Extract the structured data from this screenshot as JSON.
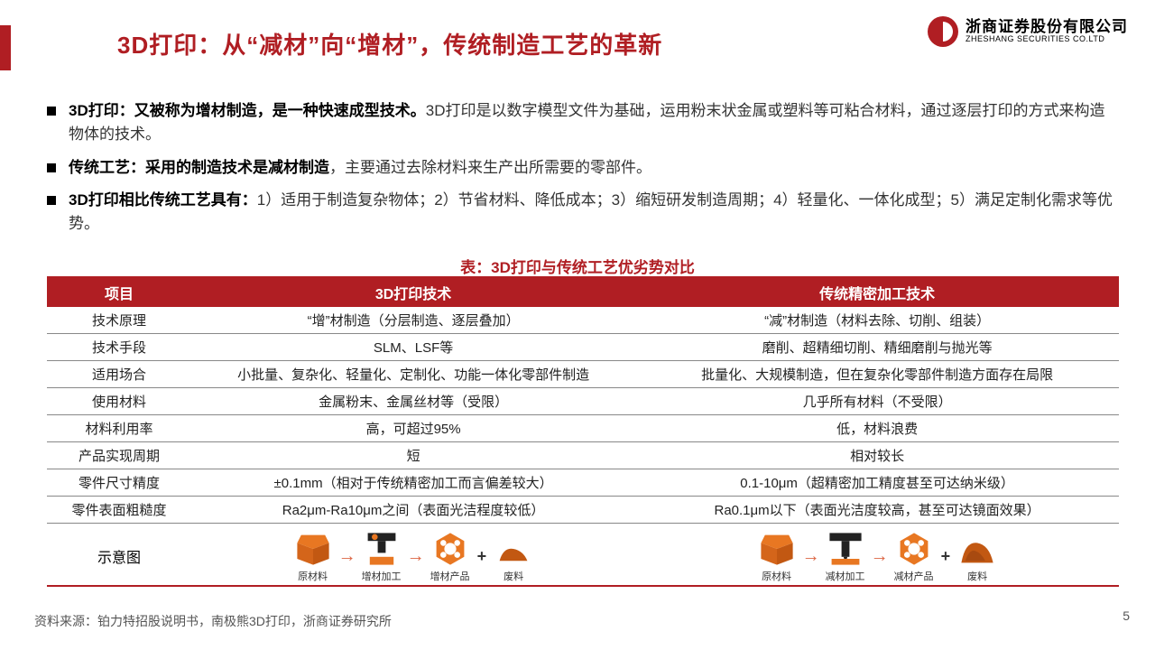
{
  "colors": {
    "brand": "#b01e23",
    "text": "#333333",
    "arrow": "#d94a2a",
    "orange": "#e87722",
    "dark": "#222222"
  },
  "logo": {
    "cn": "浙商证券股份有限公司",
    "en": "ZHESHANG SECURITIES CO.LTD"
  },
  "title": "3D打印：从“减材”向“增材”，传统制造工艺的革新",
  "bullets": [
    {
      "bold": "3D打印：又被称为增材制造，是一种快速成型技术。",
      "rest": "3D打印是以数字模型文件为基础，运用粉末状金属或塑料等可粘合材料，通过逐层打印的方式来构造物体的技术。"
    },
    {
      "bold": "传统工艺：采用的制造技术是减材制造",
      "rest": "，主要通过去除材料来生产出所需要的零部件。"
    },
    {
      "bold": "3D打印相比传统工艺具有：",
      "rest": "1）适用于制造复杂物体；2）节省材料、降低成本；3）缩短研发制造周期；4）轻量化、一体化成型；5）满足定制化需求等优势。"
    }
  ],
  "table": {
    "caption": "表：3D打印与传统工艺优劣势对比",
    "columns": [
      "项目",
      "3D打印技术",
      "传统精密加工技术"
    ],
    "rows": [
      [
        "技术原理",
        "“增”材制造（分层制造、逐层叠加）",
        "“减”材制造（材料去除、切削、组装）"
      ],
      [
        "技术手段",
        "SLM、LSF等",
        "磨削、超精细切削、精细磨削与抛光等"
      ],
      [
        "适用场合",
        "小批量、复杂化、轻量化、定制化、功能一体化零部件制造",
        "批量化、大规模制造，但在复杂化零部件制造方面存在局限"
      ],
      [
        "使用材料",
        "金属粉末、金属丝材等（受限）",
        "几乎所有材料（不受限）"
      ],
      [
        "材料利用率",
        "高，可超过95%",
        "低，材料浪费"
      ],
      [
        "产品实现周期",
        "短",
        "相对较长"
      ],
      [
        "零件尺寸精度",
        "±0.1mm（相对于传统精密加工而言偏差较大）",
        "0.1-10μm（超精密加工精度甚至可达纳米级）"
      ],
      [
        "零件表面粗糙度",
        "Ra2μm-Ra10μm之间（表面光洁程度较低）",
        "Ra0.1μm以下（表面光洁度较高，甚至可达镜面效果）"
      ]
    ],
    "diagram_label": "示意图",
    "diag_a": {
      "items": [
        "原材料",
        "增材加工",
        "增材产品",
        "废料"
      ]
    },
    "diag_b": {
      "items": [
        "原材料",
        "减材加工",
        "减材产品",
        "废料"
      ]
    }
  },
  "source": "资料来源：铂力特招股说明书，南极熊3D打印，浙商证券研究所",
  "page": "5"
}
